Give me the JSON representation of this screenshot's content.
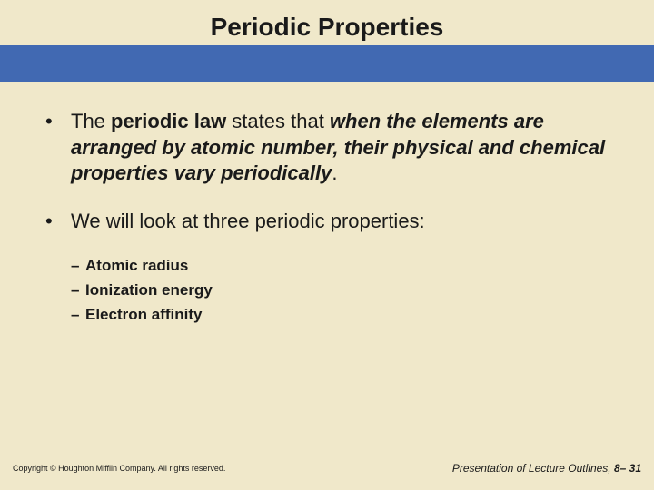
{
  "colors": {
    "header_bg": "#f0e8ca",
    "blue_band": "#4169b2",
    "content_bg": "#f0e8ca",
    "title_color": "#1a1a1a",
    "text_color": "#1a1a1a",
    "bullet_color": "#1a1a1a",
    "footer_color": "#1a1a1a"
  },
  "title": "Periodic Properties",
  "bullets": {
    "b1_prefix": "The ",
    "b1_bold1": "periodic law",
    "b1_mid": " states that ",
    "b1_bolditalic": "when the elements are arranged by atomic number, their physical and chemical properties vary periodically",
    "b1_suffix": ".",
    "b2": "We will look at three periodic properties:",
    "sub1": "Atomic radius",
    "sub2": "Ionization energy",
    "sub3": "Electron affinity"
  },
  "footer": {
    "left": "Copyright © Houghton Mifflin Company. All rights reserved.",
    "right_label": "Presentation of Lecture Outlines, ",
    "right_page": "8– 31"
  }
}
